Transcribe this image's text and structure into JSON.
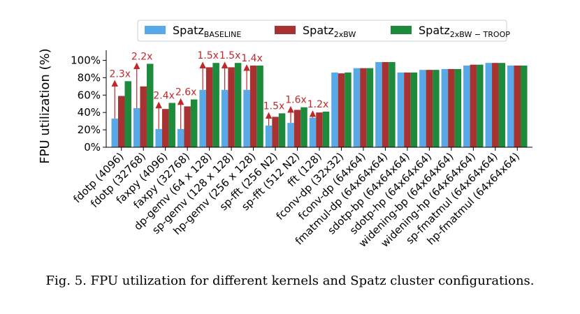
{
  "caption": "Fig. 5.  FPU utilization for different kernels and Spatz cluster configurations.",
  "chart_data": {
    "type": "bar",
    "title": "",
    "xlabel": "",
    "ylabel": "FPU utilization (%)",
    "ylim": [
      0,
      110
    ],
    "yticks": [
      0,
      20,
      40,
      60,
      80,
      100
    ],
    "ytick_labels": [
      "0%",
      "20%",
      "40%",
      "60%",
      "80%",
      "100%"
    ],
    "grid": false,
    "legend_position": "top-center",
    "categories": [
      "fdotp (4096)",
      "fdotp (32768)",
      "faxpy (4096)",
      "faxpy (32768)",
      "dp-gemv (64 x 128)",
      "sp-gemv (128 x 128)",
      "hp-gemv (256 x 128)",
      "sp-fft (256 N2)",
      "sp-fft (512 N2)",
      "fft (128)",
      "fconv-dp (32x32)",
      "fconv-dp (64x64)",
      "fmatmul-dp (64x64x64)",
      "sdotp-bp (64x64x64)",
      "sdotp-hp (64x64x64)",
      "widening-bp (64x64x64)",
      "widening-hp (64x64x64)",
      "sp-fmatmul (64x64x64)",
      "hp-fmatmul (64x64x64)"
    ],
    "series": [
      {
        "name": "Spatz",
        "subscript": "BASELINE",
        "color": "#57a9e8",
        "values": [
          33,
          45,
          21,
          21,
          66,
          66,
          66,
          25,
          28,
          34,
          86,
          91,
          98,
          86,
          89,
          90,
          94,
          97,
          94
        ]
      },
      {
        "name": "Spatz",
        "subscript": "2xBW",
        "color": "#a83232",
        "values": [
          59,
          70,
          44,
          47,
          92,
          92,
          94,
          35,
          43,
          40,
          85,
          91,
          98,
          86,
          89,
          90,
          95,
          97,
          94
        ]
      },
      {
        "name": "Spatz",
        "subscript": "2xBW − TROOP",
        "color": "#1e8a3c",
        "values": [
          76,
          96,
          51,
          55,
          97,
          97,
          94,
          39,
          46,
          41,
          86,
          91,
          98,
          86,
          89,
          90,
          95,
          97,
          94
        ]
      }
    ],
    "annotations": [
      {
        "category": 0,
        "label": "2.3x"
      },
      {
        "category": 1,
        "label": "2.2x"
      },
      {
        "category": 2,
        "label": "2.4x"
      },
      {
        "category": 3,
        "label": "2.6x"
      },
      {
        "category": 4,
        "label": "1.5x"
      },
      {
        "category": 5,
        "label": "1.5x"
      },
      {
        "category": 6,
        "label": "1.4x"
      },
      {
        "category": 7,
        "label": "1.5x"
      },
      {
        "category": 8,
        "label": "1.6x"
      },
      {
        "category": 9,
        "label": "1.2x"
      }
    ]
  }
}
